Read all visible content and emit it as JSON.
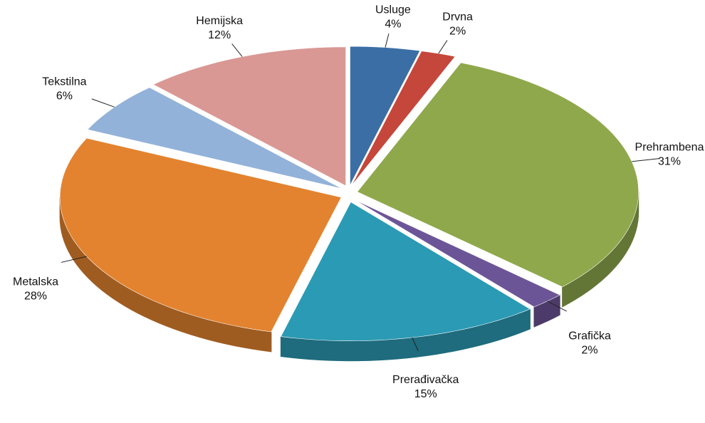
{
  "chart_data": {
    "type": "pie",
    "categories": [
      "Usluge",
      "Drvna",
      "Prehrambena",
      "Grafička",
      "Prerađivačka",
      "Metalska",
      "Tekstilna",
      "Hemijska"
    ],
    "values": [
      4,
      2,
      31,
      2,
      15,
      28,
      6,
      12
    ],
    "value_labels": [
      "4%",
      "2%",
      "31%",
      "2%",
      "15%",
      "28%",
      "6%",
      "12%"
    ],
    "colors": [
      "#3b6ea5",
      "#c5463a",
      "#8fa84c",
      "#6c5597",
      "#2b9ab4",
      "#e3832f",
      "#92b2d9",
      "#d99894"
    ]
  }
}
